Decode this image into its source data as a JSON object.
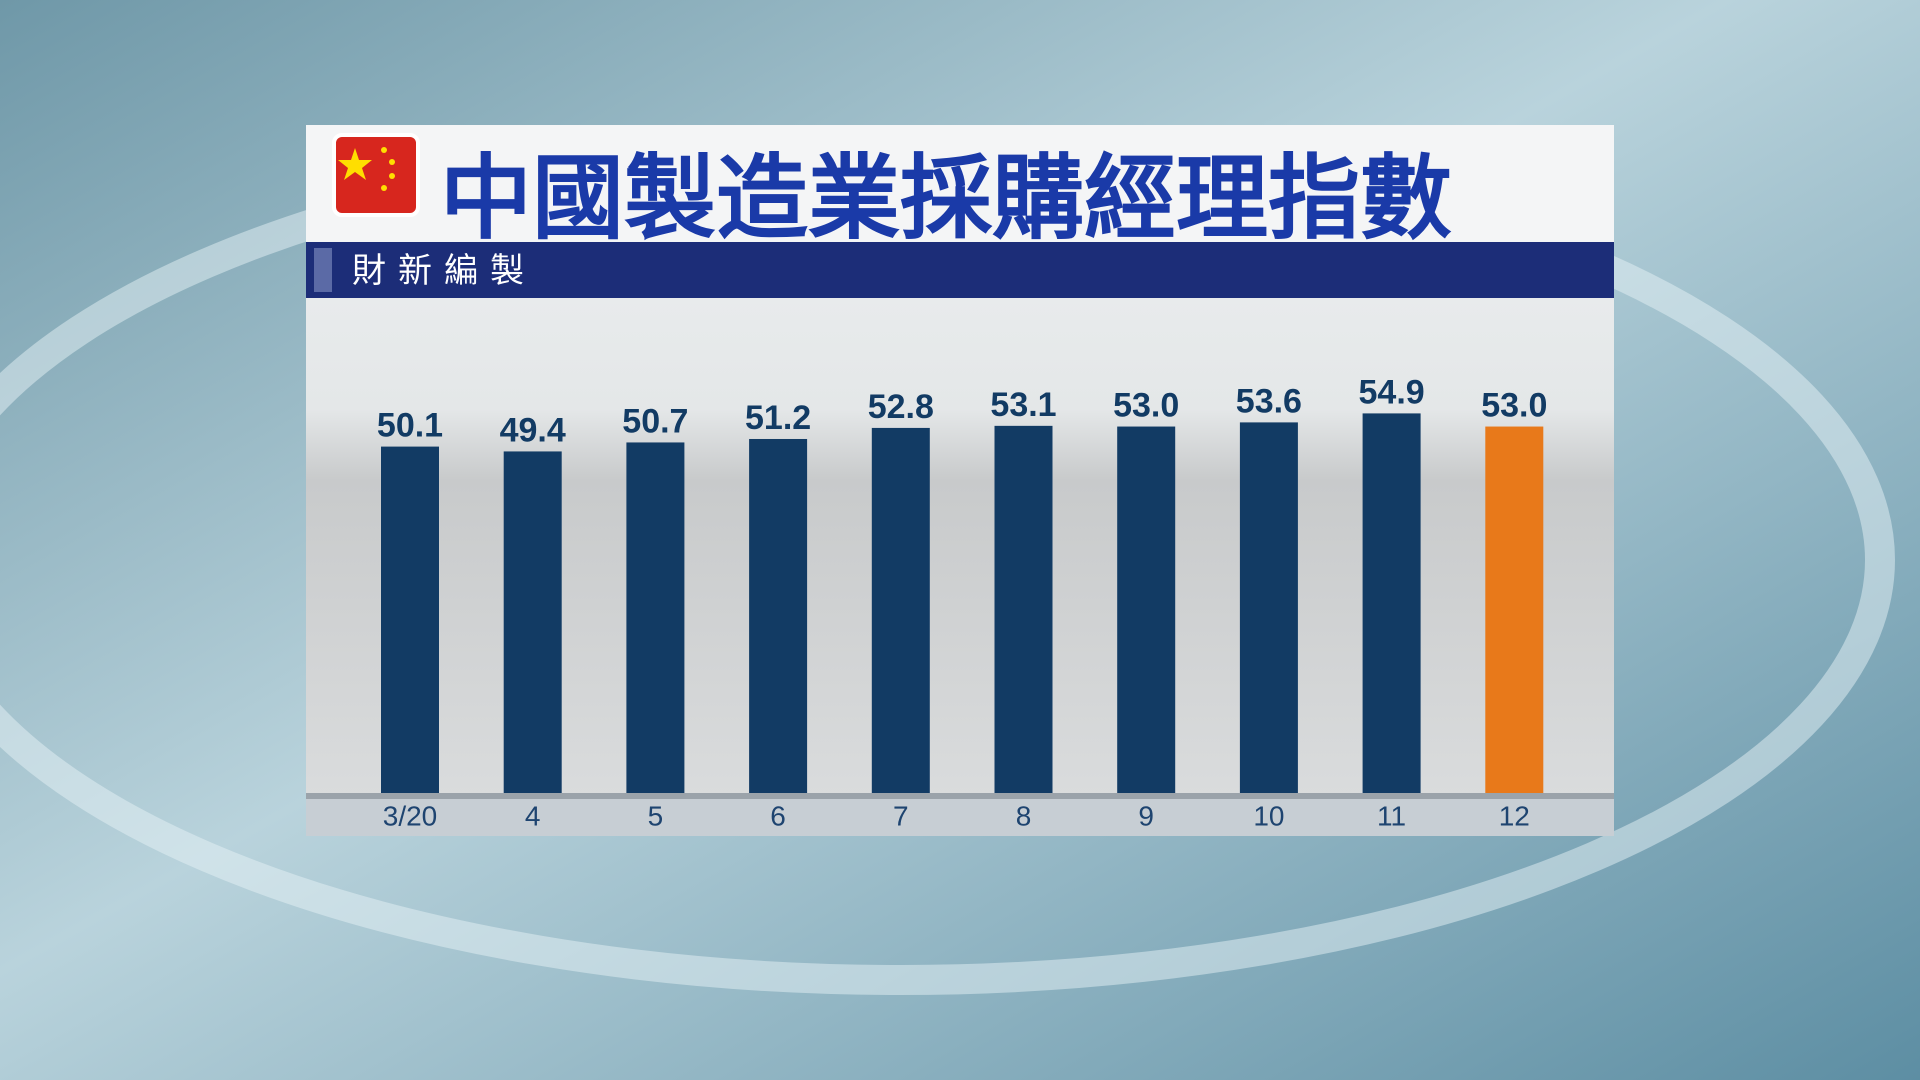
{
  "chart_data": {
    "type": "bar",
    "title": "中國製造業採購經理指數",
    "subtitle": "財新編製",
    "categories": [
      "3/20",
      "4",
      "5",
      "6",
      "7",
      "8",
      "9",
      "10",
      "11",
      "12"
    ],
    "values": [
      50.1,
      49.4,
      50.7,
      51.2,
      52.8,
      53.1,
      53.0,
      53.6,
      54.9,
      53.0
    ],
    "value_labels": [
      "50.1",
      "49.4",
      "50.7",
      "51.2",
      "52.8",
      "53.1",
      "53.0",
      "53.6",
      "54.9",
      "53.0"
    ],
    "colors": [
      "#123b64",
      "#123b64",
      "#123b64",
      "#123b64",
      "#123b64",
      "#123b64",
      "#123b64",
      "#123b64",
      "#123b64",
      "#e8791a"
    ],
    "ylim": [
      0,
      70
    ]
  }
}
